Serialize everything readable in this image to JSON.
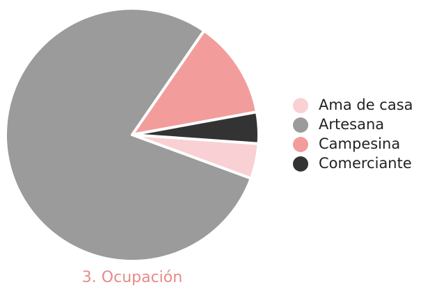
{
  "chart_data": {
    "type": "pie",
    "title": "3. Ocupación",
    "categories": [
      "Ama de casa",
      "Artesana",
      "Campesina",
      "Comerciante"
    ],
    "values": [
      4.5,
      79,
      12.5,
      4
    ],
    "colors": [
      "#f9d0d3",
      "#9b9b9b",
      "#f29c9c",
      "#333333"
    ],
    "title_color": "#e88a8a"
  }
}
